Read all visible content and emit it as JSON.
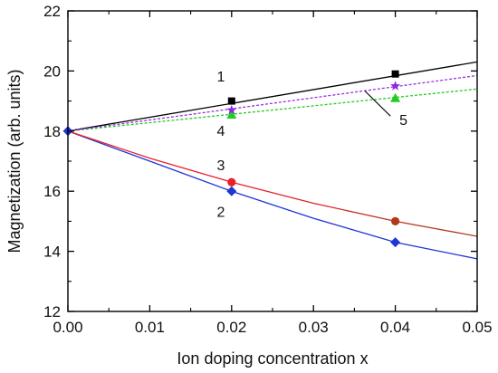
{
  "chart_data": {
    "type": "line",
    "xlabel": "Ion doping concentration x",
    "ylabel": "Magnetization (arb. units)",
    "xlim": [
      0.0,
      0.05
    ],
    "ylim": [
      12,
      22
    ],
    "xticks": [
      0.0,
      0.01,
      0.02,
      0.03,
      0.04,
      0.05
    ],
    "xtick_labels": [
      "0.00",
      "0.01",
      "0.02",
      "0.03",
      "0.04",
      "0.05"
    ],
    "yticks": [
      12,
      14,
      16,
      18,
      20,
      22
    ],
    "ytick_labels": [
      "12",
      "14",
      "16",
      "18",
      "20",
      "22"
    ],
    "grid": false,
    "series": [
      {
        "line_color": "#000000",
        "marker_color": "#000000",
        "marker": "square",
        "dash": "solid",
        "line": [
          [
            0.0,
            18.0
          ],
          [
            0.05,
            20.3
          ]
        ],
        "points": [
          [
            0.0,
            18.0
          ],
          [
            0.02,
            19.0
          ],
          [
            0.04,
            19.9
          ]
        ]
      },
      {
        "line_color": "#1f35d4",
        "marker_color": "#1f35d4",
        "marker": "diamond",
        "dash": "solid",
        "line": [
          [
            0.0,
            18.0
          ],
          [
            0.01,
            17.0
          ],
          [
            0.02,
            16.0
          ],
          [
            0.03,
            15.1
          ],
          [
            0.04,
            14.3
          ],
          [
            0.05,
            13.75
          ]
        ],
        "points": [
          [
            0.0,
            18.0
          ],
          [
            0.02,
            16.0
          ],
          [
            0.04,
            14.3
          ]
        ]
      },
      {
        "line_color": "#e8202a",
        "line_color_end": "#a0401a",
        "marker_color": "#e8202a",
        "marker_color_end": "#b03a1a",
        "marker": "circle",
        "dash": "solid",
        "line": [
          [
            0.0,
            18.0
          ],
          [
            0.01,
            17.1
          ],
          [
            0.02,
            16.3
          ],
          [
            0.03,
            15.6
          ],
          [
            0.04,
            15.0
          ],
          [
            0.05,
            14.5
          ]
        ],
        "points": [
          [
            0.0,
            18.0
          ],
          [
            0.02,
            16.3
          ],
          [
            0.04,
            15.0
          ]
        ]
      },
      {
        "line_color": "#22cc22",
        "marker_color": "#22cc22",
        "marker": "triangle",
        "dash": "dashed",
        "line": [
          [
            0.0,
            18.0
          ],
          [
            0.05,
            19.4
          ]
        ],
        "points": [
          [
            0.0,
            18.0
          ],
          [
            0.02,
            18.55
          ],
          [
            0.04,
            19.1
          ]
        ]
      },
      {
        "line_color": "#9b30e0",
        "marker_color": "#8a2be2",
        "marker": "star",
        "dash": "dashed",
        "line": [
          [
            0.0,
            18.0
          ],
          [
            0.05,
            19.85
          ]
        ],
        "points": [
          [
            0.0,
            18.0
          ],
          [
            0.02,
            18.7
          ],
          [
            0.04,
            19.5
          ]
        ]
      }
    ],
    "annotations": [
      {
        "text": "1",
        "x": 0.0182,
        "y": 19.65
      },
      {
        "text": "2",
        "x": 0.0182,
        "y": 15.15
      },
      {
        "text": "3",
        "x": 0.0182,
        "y": 16.7
      },
      {
        "text": "4",
        "x": 0.0182,
        "y": 17.85
      },
      {
        "text": "5",
        "x": 0.0405,
        "y": 18.2
      }
    ],
    "leader_line": {
      "from": [
        0.0394,
        18.5
      ],
      "to": [
        0.0363,
        19.33
      ]
    }
  }
}
